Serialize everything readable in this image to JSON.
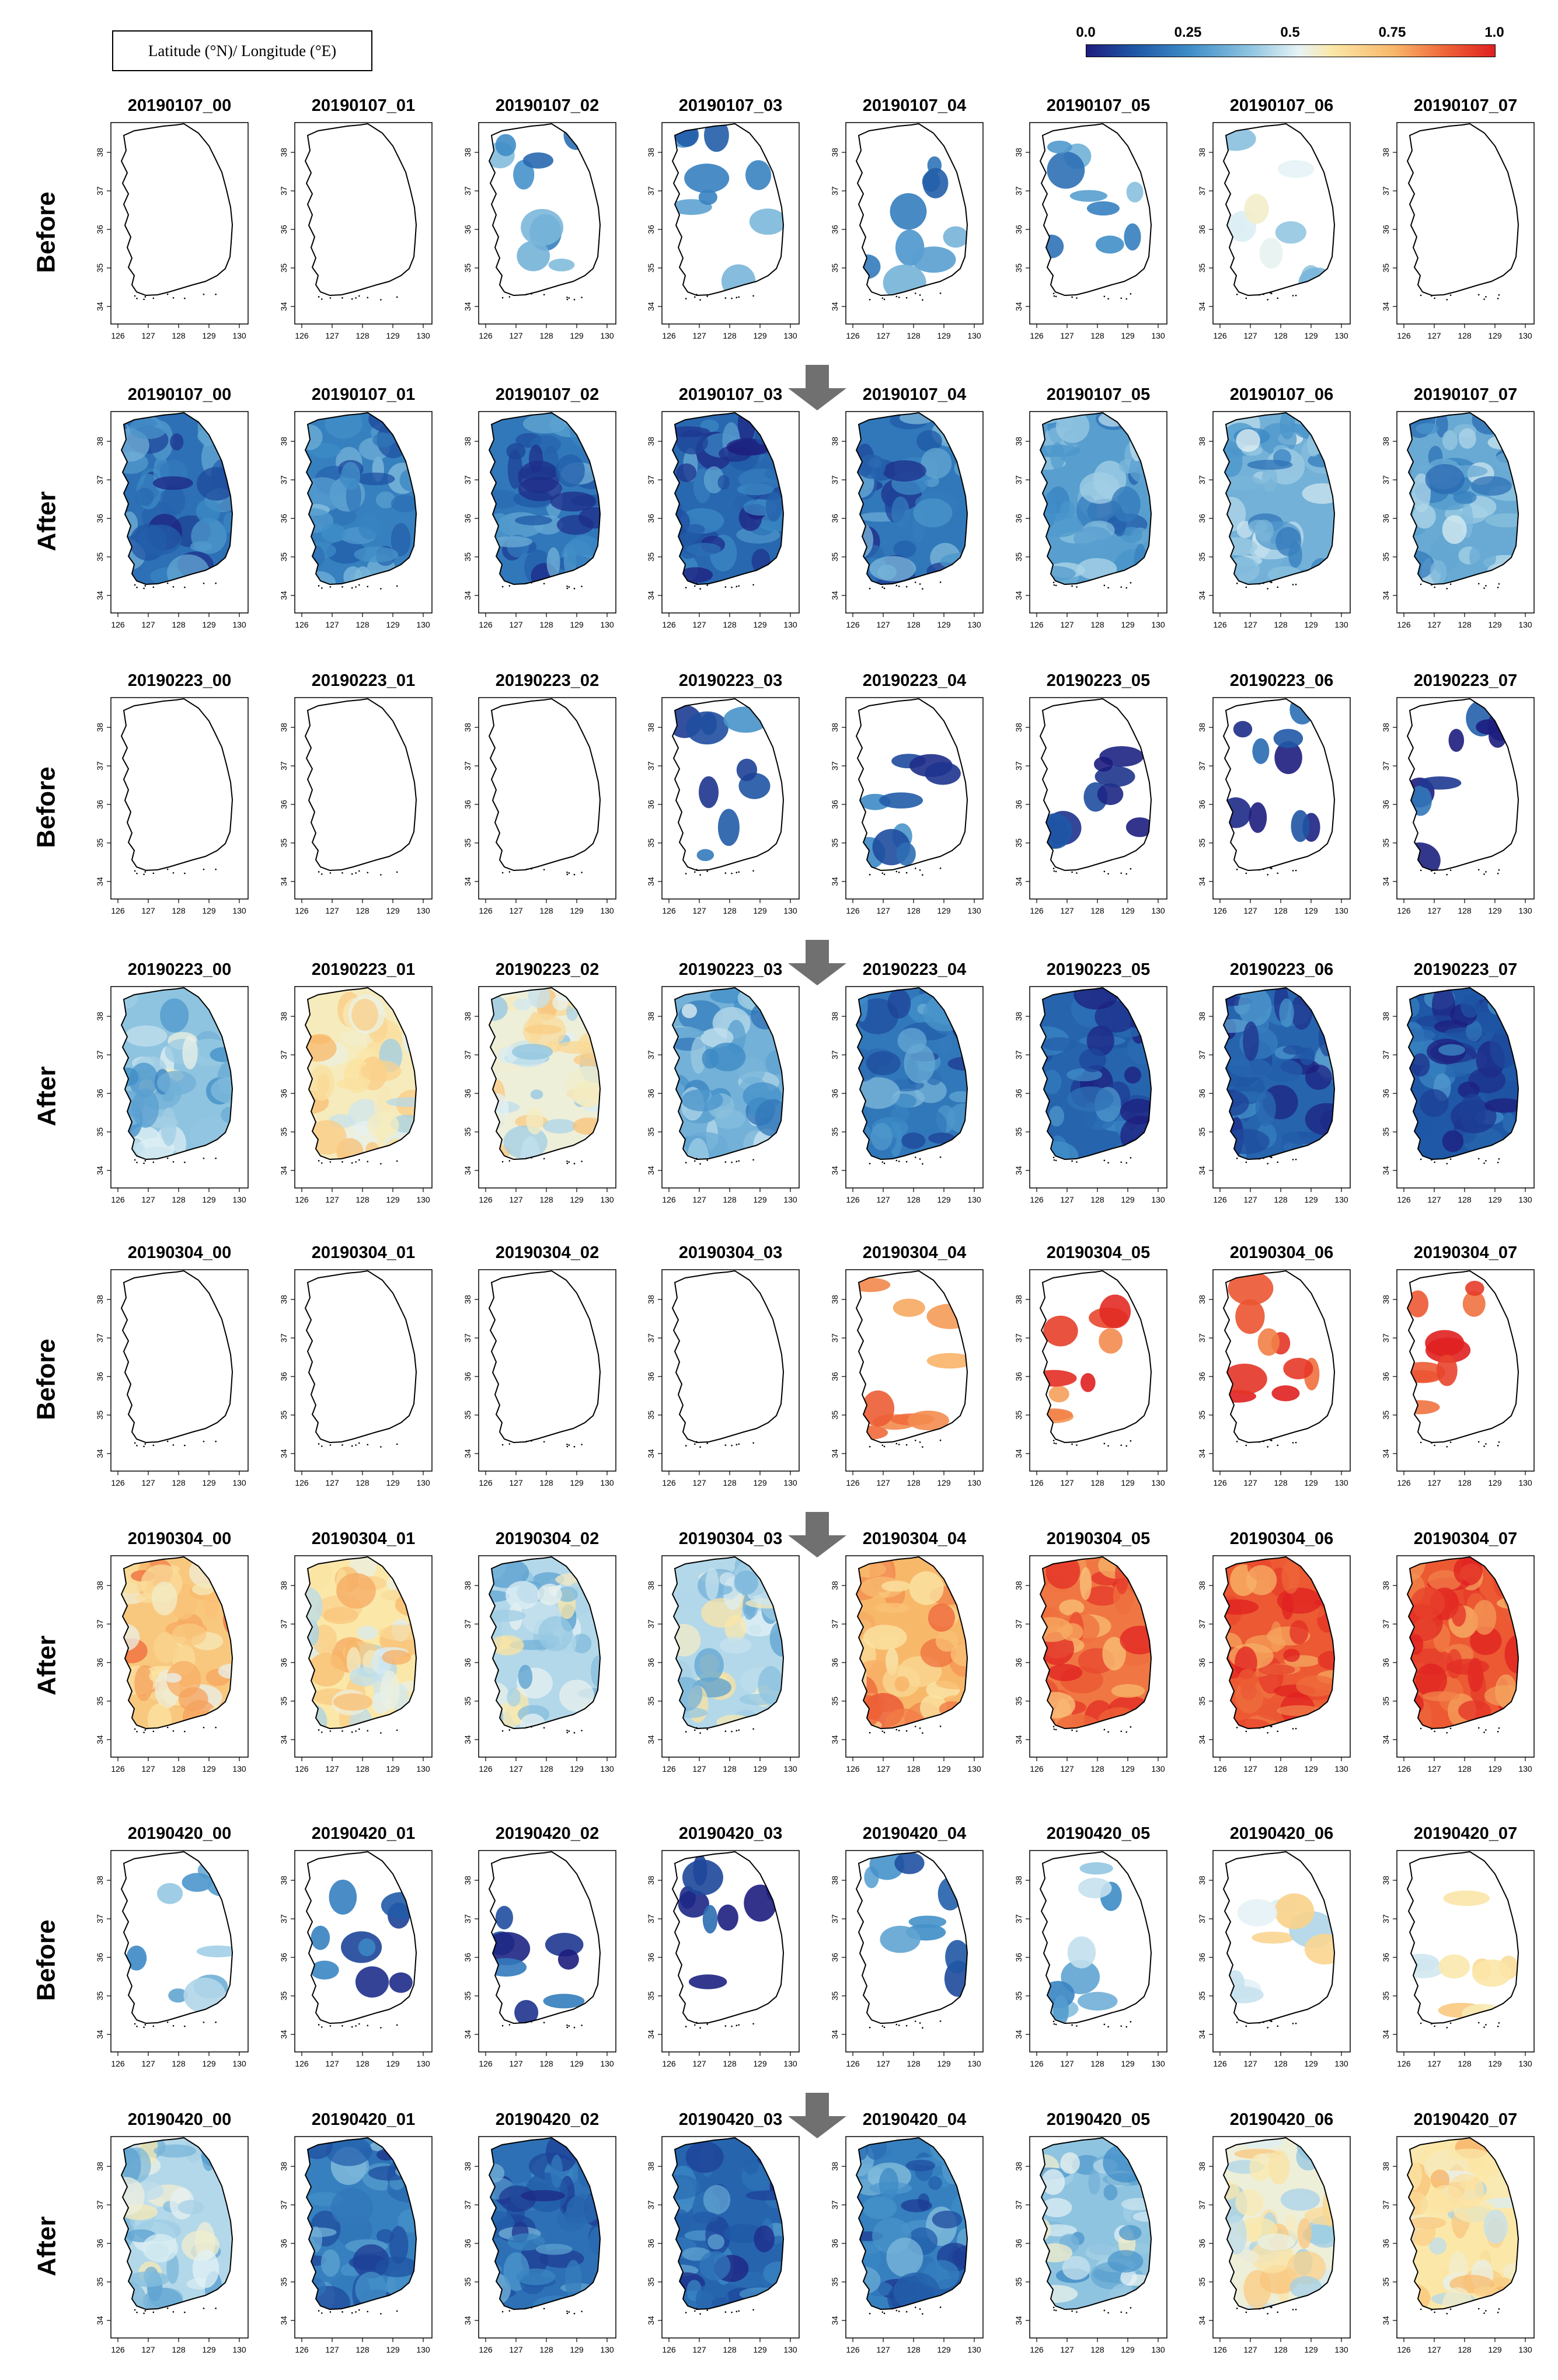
{
  "coord_label": "Latitude (°N)/ Longitude (°E)",
  "colorbar": {
    "ticks": [
      "0.0",
      "0.25",
      "0.5",
      "0.75",
      "1.0"
    ],
    "tick_values": [
      0.0,
      0.25,
      0.5,
      0.75,
      1.0
    ]
  },
  "axes": {
    "lon_ticks": [
      "126",
      "127",
      "128",
      "129",
      "130"
    ],
    "lat_ticks": [
      "34",
      "35",
      "36",
      "37",
      "38"
    ]
  },
  "rows": [
    {
      "label": "Before",
      "date": "20190107",
      "mode": "sparse",
      "hours": [
        "00",
        "01",
        "02",
        "03",
        "04",
        "05",
        "06",
        "07"
      ]
    },
    {
      "label": "After",
      "date": "20190107",
      "mode": "full",
      "hours": [
        "00",
        "01",
        "02",
        "03",
        "04",
        "05",
        "06",
        "07"
      ]
    },
    {
      "label": "Before",
      "date": "20190223",
      "mode": "sparse",
      "hours": [
        "00",
        "01",
        "02",
        "03",
        "04",
        "05",
        "06",
        "07"
      ]
    },
    {
      "label": "After",
      "date": "20190223",
      "mode": "full",
      "hours": [
        "00",
        "01",
        "02",
        "03",
        "04",
        "05",
        "06",
        "07"
      ]
    },
    {
      "label": "Before",
      "date": "20190304",
      "mode": "sparse",
      "hours": [
        "00",
        "01",
        "02",
        "03",
        "04",
        "05",
        "06",
        "07"
      ]
    },
    {
      "label": "After",
      "date": "20190304",
      "mode": "full",
      "hours": [
        "00",
        "01",
        "02",
        "03",
        "04",
        "05",
        "06",
        "07"
      ]
    },
    {
      "label": "Before",
      "date": "20190420",
      "mode": "sparse",
      "hours": [
        "00",
        "01",
        "02",
        "03",
        "04",
        "05",
        "06",
        "07"
      ]
    },
    {
      "label": "After",
      "date": "20190420",
      "mode": "full",
      "hours": [
        "00",
        "01",
        "02",
        "03",
        "04",
        "05",
        "06",
        "07"
      ]
    }
  ],
  "approx_mean_values": [
    [
      null,
      null,
      0.28,
      0.25,
      0.25,
      0.3,
      0.45,
      null
    ],
    [
      0.18,
      0.22,
      0.2,
      0.16,
      0.2,
      0.3,
      0.35,
      0.33
    ],
    [
      null,
      null,
      null,
      0.15,
      0.15,
      0.08,
      0.08,
      0.08
    ],
    [
      0.4,
      0.58,
      0.55,
      0.35,
      0.2,
      0.15,
      0.15,
      0.12
    ],
    [
      null,
      null,
      null,
      null,
      0.85,
      0.9,
      0.95,
      0.95
    ],
    [
      0.7,
      0.6,
      0.45,
      0.45,
      0.75,
      0.85,
      0.9,
      0.9
    ],
    [
      0.35,
      0.15,
      0.1,
      0.1,
      0.2,
      0.35,
      0.55,
      0.6
    ],
    [
      0.45,
      0.22,
      0.18,
      0.15,
      0.22,
      0.4,
      0.55,
      0.6
    ]
  ],
  "colors": {
    "outline": "#000000",
    "arrow": "#707070"
  }
}
